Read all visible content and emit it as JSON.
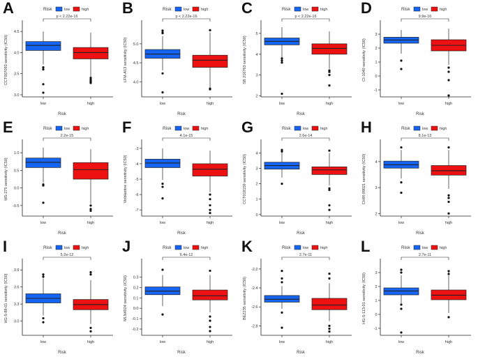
{
  "legend": {
    "title": "Risk",
    "low_label": "low",
    "high_label": "high"
  },
  "colors": {
    "low": "#1565f2",
    "high": "#ee1111",
    "axis": "#222222",
    "text": "#333333"
  },
  "chart_data": [
    {
      "panel": "A",
      "type": "box",
      "ylabel": "CCT007093 sensitivity (IC50)",
      "xlabel": "Risk",
      "categories": [
        "low",
        "high"
      ],
      "yticks": [
        3.0,
        3.5,
        4.0,
        4.5
      ],
      "ylim": [
        2.95,
        4.7
      ],
      "pvalue": "p < 2.22e-16",
      "boxes": [
        {
          "q1": 4.05,
          "median": 4.17,
          "q3": 4.26,
          "wlo": 3.72,
          "whi": 4.5,
          "outliers": [
            3.65,
            3.6,
            3.25,
            3.05
          ]
        },
        {
          "q1": 3.85,
          "median": 4.0,
          "q3": 4.12,
          "wlo": 3.42,
          "whi": 4.47,
          "outliers": [
            3.4,
            3.36,
            3.33,
            3.3,
            3.28
          ]
        }
      ]
    },
    {
      "panel": "B",
      "type": "box",
      "ylabel": "LFM-A13 sensitivity (IC50)",
      "xlabel": "Risk",
      "categories": [
        "low",
        "high"
      ],
      "yticks": [
        4.0,
        4.5,
        5.0
      ],
      "ylim": [
        3.6,
        5.55
      ],
      "pvalue": "p < 2.22e-16",
      "boxes": [
        {
          "q1": 4.62,
          "median": 4.73,
          "q3": 4.85,
          "wlo": 4.3,
          "whi": 5.2,
          "outliers": [
            5.35,
            5.3,
            5.28,
            4.22,
            3.72
          ]
        },
        {
          "q1": 4.38,
          "median": 4.57,
          "q3": 4.7,
          "wlo": 3.85,
          "whi": 5.3,
          "outliers": [
            5.36,
            3.82,
            3.8
          ]
        }
      ]
    },
    {
      "panel": "C",
      "type": "box",
      "ylabel": "SB 216763 sensitivity (IC50)",
      "xlabel": "Risk",
      "categories": [
        "low",
        "high"
      ],
      "yticks": [
        2,
        3,
        4,
        5
      ],
      "ylim": [
        1.95,
        5.5
      ],
      "pvalue": "p < 2.22e-16",
      "boxes": [
        {
          "q1": 4.45,
          "median": 4.62,
          "q3": 4.78,
          "wlo": 3.85,
          "whi": 5.3,
          "outliers": [
            3.8,
            3.7,
            3.6,
            2.1
          ]
        },
        {
          "q1": 4.0,
          "median": 4.28,
          "q3": 4.5,
          "wlo": 3.3,
          "whi": 5.1,
          "outliers": [
            3.22,
            3.15,
            3.0,
            2.5
          ]
        }
      ]
    },
    {
      "panel": "D",
      "type": "box",
      "ylabel": "CI-1040 sensitivity (IC50)",
      "xlabel": "Risk",
      "categories": [
        "low",
        "high"
      ],
      "yticks": [
        -1,
        0,
        1,
        2,
        3
      ],
      "ylim": [
        -1.5,
        3.8
      ],
      "pvalue": "9.9e-16",
      "boxes": [
        {
          "q1": 2.35,
          "median": 2.58,
          "q3": 2.78,
          "wlo": 1.6,
          "whi": 3.3,
          "outliers": [
            1.1,
            0.5
          ]
        },
        {
          "q1": 1.8,
          "median": 2.2,
          "q3": 2.6,
          "wlo": 0.8,
          "whi": 3.4,
          "outliers": [
            0.6,
            0.3,
            -0.3,
            -1.4
          ]
        }
      ]
    },
    {
      "panel": "E",
      "type": "box",
      "ylabel": "MS-275 sensitivity (IC50)",
      "xlabel": "Risk",
      "categories": [
        "low",
        "high"
      ],
      "yticks": [
        -0.5,
        0.0,
        0.5,
        1.0
      ],
      "ylim": [
        -0.8,
        1.3
      ],
      "pvalue": "2.2e-15",
      "boxes": [
        {
          "q1": 0.58,
          "median": 0.73,
          "q3": 0.85,
          "wlo": 0.15,
          "whi": 1.15,
          "outliers": [
            0.1,
            0.07,
            -0.42
          ]
        },
        {
          "q1": 0.25,
          "median": 0.52,
          "q3": 0.72,
          "wlo": -0.45,
          "whi": 1.1,
          "outliers": [
            -0.5,
            -0.6,
            -0.65
          ]
        }
      ]
    },
    {
      "panel": "F",
      "type": "box",
      "ylabel": "Vinblastine sensitivity (IC50)",
      "xlabel": "Risk",
      "categories": [
        "low",
        "high"
      ],
      "yticks": [
        -7,
        -6,
        -5,
        -4,
        -3
      ],
      "ylim": [
        -7.4,
        -2.6
      ],
      "pvalue": "4.1e-15",
      "boxes": [
        {
          "q1": -4.25,
          "median": -3.95,
          "q3": -3.7,
          "wlo": -5.05,
          "whi": -3.0,
          "outliers": [
            -5.3,
            -5.5,
            -6.25
          ]
        },
        {
          "q1": -4.8,
          "median": -4.35,
          "q3": -4.0,
          "wlo": -5.85,
          "whi": -3.15,
          "outliers": [
            -6.0,
            -6.3,
            -6.7,
            -7.0,
            -7.2
          ]
        }
      ]
    },
    {
      "panel": "G",
      "type": "box",
      "ylabel": "CCT018159 sensitivity (IC50)",
      "xlabel": "Risk",
      "categories": [
        "low",
        "high"
      ],
      "yticks": [
        0,
        1,
        2,
        3,
        4
      ],
      "ylim": [
        -0.1,
        4.7
      ],
      "pvalue": "2.6e-14",
      "boxes": [
        {
          "q1": 2.95,
          "median": 3.18,
          "q3": 3.4,
          "wlo": 2.4,
          "whi": 4.05,
          "outliers": [
            4.2,
            4.1,
            2.0
          ]
        },
        {
          "q1": 2.6,
          "median": 2.9,
          "q3": 3.1,
          "wlo": 1.9,
          "whi": 4.0,
          "outliers": [
            4.15,
            1.7,
            1.6,
            0.6,
            0.3
          ]
        }
      ]
    },
    {
      "panel": "H",
      "type": "box",
      "ylabel": "CHIR-99021 sensitivity (IC50)",
      "xlabel": "Risk",
      "categories": [
        "low",
        "high"
      ],
      "yticks": [
        2,
        3,
        4
      ],
      "ylim": [
        1.9,
        4.75
      ],
      "pvalue": "8.1e-13",
      "boxes": [
        {
          "q1": 3.75,
          "median": 3.88,
          "q3": 4.02,
          "wlo": 3.35,
          "whi": 4.45,
          "outliers": [
            4.55,
            3.2,
            2.8
          ]
        },
        {
          "q1": 3.48,
          "median": 3.65,
          "q3": 3.85,
          "wlo": 2.95,
          "whi": 4.45,
          "outliers": [
            4.55,
            2.7,
            2.6,
            2.45,
            2.0
          ]
        }
      ]
    },
    {
      "panel": "I",
      "type": "box",
      "ylabel": "HG-5-88-01 sensitivity (IC50)",
      "xlabel": "Risk",
      "categories": [
        "low",
        "high"
      ],
      "yticks": [
        3.0,
        3.3,
        3.6,
        3.9
      ],
      "ylim": [
        2.75,
        4.05
      ],
      "pvalue": "5.2e-12",
      "boxes": [
        {
          "q1": 3.32,
          "median": 3.4,
          "q3": 3.48,
          "wlo": 3.1,
          "whi": 3.75,
          "outliers": [
            3.82,
            3.78,
            3.05,
            2.98
          ]
        },
        {
          "q1": 3.2,
          "median": 3.29,
          "q3": 3.38,
          "wlo": 2.95,
          "whi": 3.72,
          "outliers": [
            3.86,
            3.82,
            2.88,
            2.82
          ]
        }
      ]
    },
    {
      "panel": "J",
      "type": "box",
      "ylabel": "MLN4924 sensitivity (IC50)",
      "xlabel": "Risk",
      "categories": [
        "low",
        "high"
      ],
      "yticks": [
        -0.2,
        -0.1,
        0.0,
        0.1,
        0.2,
        0.3
      ],
      "ylim": [
        -0.26,
        0.45
      ],
      "pvalue": "6.4e-12",
      "boxes": [
        {
          "q1": 0.13,
          "median": 0.165,
          "q3": 0.205,
          "wlo": 0.02,
          "whi": 0.32,
          "outliers": [
            0.37,
            -0.06
          ]
        },
        {
          "q1": 0.08,
          "median": 0.12,
          "q3": 0.175,
          "wlo": -0.04,
          "whi": 0.32,
          "outliers": [
            0.36,
            -0.08,
            -0.12,
            -0.18,
            -0.22
          ]
        }
      ]
    },
    {
      "panel": "K",
      "type": "box",
      "ylabel": "BEZ235 sensitivity (IC50)",
      "xlabel": "Risk",
      "categories": [
        "low",
        "high"
      ],
      "yticks": [
        -2.8,
        -2.6,
        -2.4,
        -2.2
      ],
      "ylim": [
        -2.9,
        -2.12
      ],
      "pvalue": "2.7e-11",
      "boxes": [
        {
          "q1": -2.55,
          "median": -2.52,
          "q3": -2.48,
          "wlo": -2.62,
          "whi": -2.38,
          "outliers": [
            -2.22,
            -2.3,
            -2.34,
            -2.66,
            -2.82
          ]
        },
        {
          "q1": -2.63,
          "median": -2.58,
          "q3": -2.51,
          "wlo": -2.75,
          "whi": -2.35,
          "outliers": [
            -2.25,
            -2.3,
            -2.8,
            -2.83,
            -2.86
          ]
        }
      ]
    },
    {
      "panel": "L",
      "type": "box",
      "ylabel": "HG-5-113-01 sensitivity (IC50)",
      "xlabel": "Risk",
      "categories": [
        "low",
        "high"
      ],
      "yticks": [
        -1,
        0,
        1,
        2,
        3
      ],
      "ylim": [
        -1.5,
        3.8
      ],
      "pvalue": "2.7e-11",
      "boxes": [
        {
          "q1": 1.4,
          "median": 1.68,
          "q3": 1.9,
          "wlo": 0.8,
          "whi": 2.8,
          "outliers": [
            3.2,
            3.0,
            0.7,
            0.4,
            -1.3
          ]
        },
        {
          "q1": 1.05,
          "median": 1.38,
          "q3": 1.75,
          "wlo": 0.1,
          "whi": 2.8,
          "outliers": [
            3.1,
            2.9,
            -0.2
          ]
        }
      ]
    }
  ]
}
